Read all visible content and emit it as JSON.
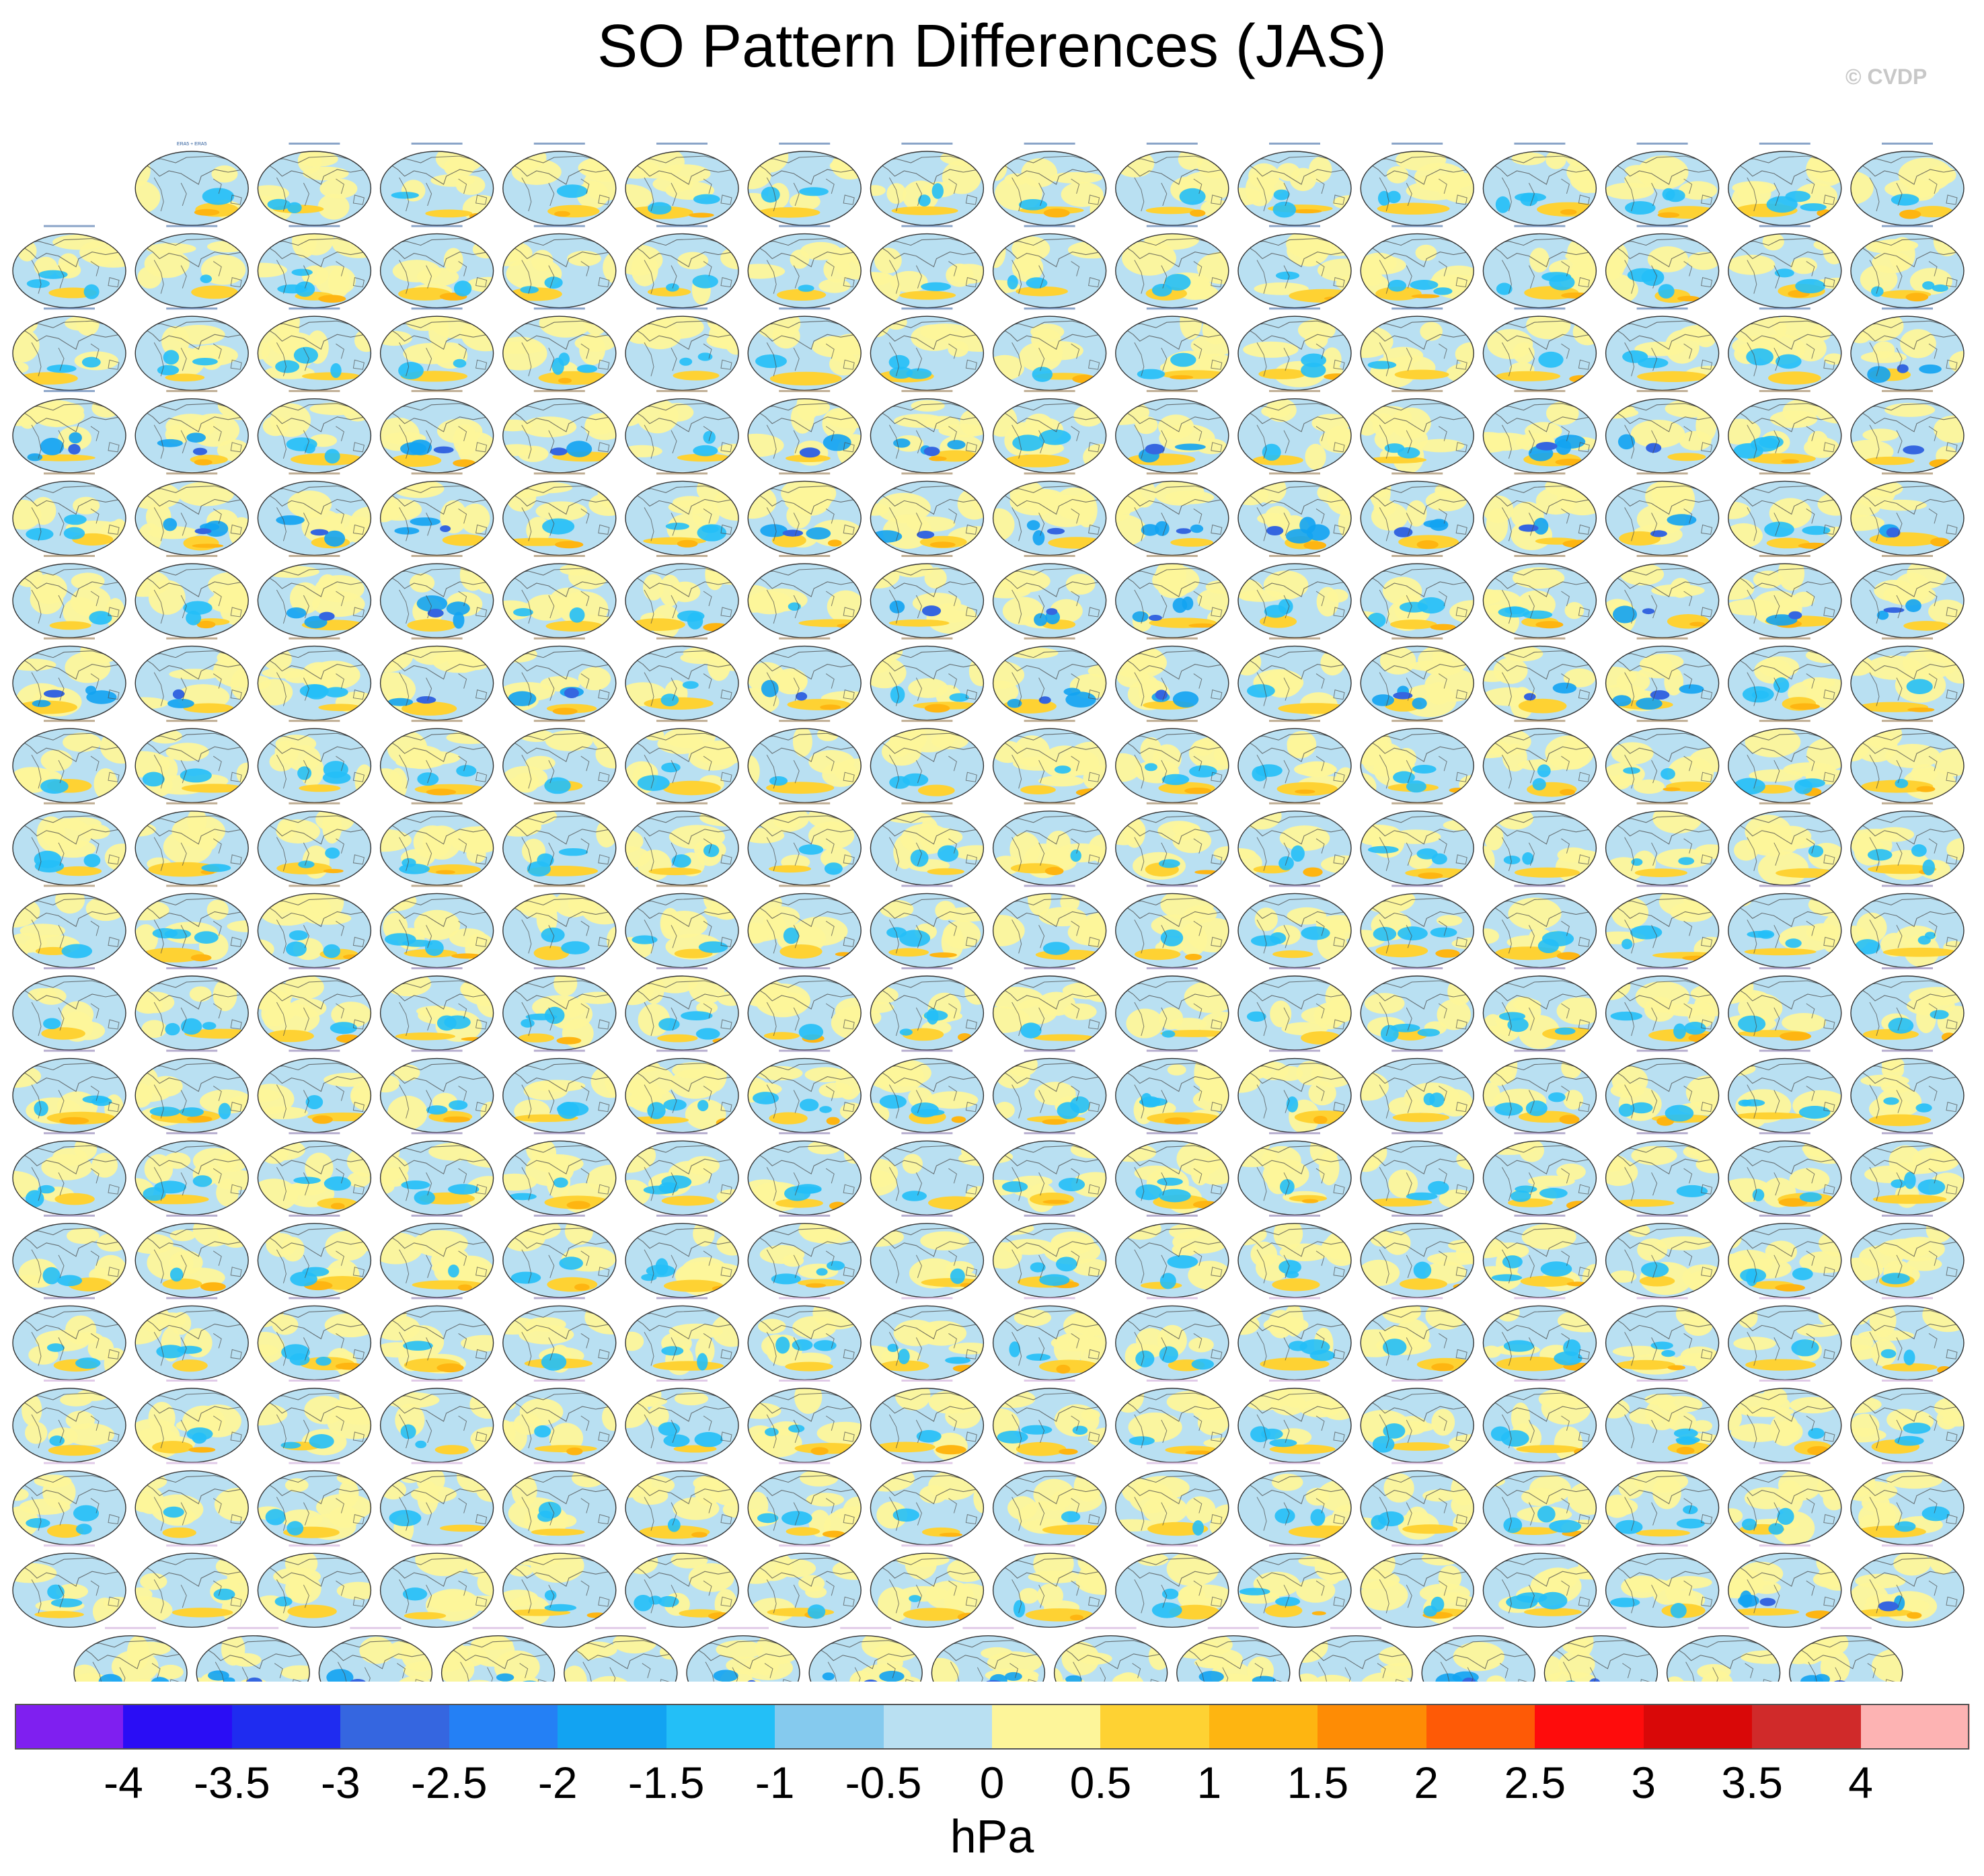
{
  "chart_data": {
    "type": "heatmap",
    "title": "SO Pattern Differences (JAS)",
    "credit": "© CVDP",
    "panel_grid": {
      "rows": 19,
      "panels_per_full_row": 16,
      "first_row_panels": 15,
      "last_row_panels": 15,
      "total_panels": 302,
      "first_panel_title": "ERA5 + ERA5",
      "projection": "global map, filled contours of pattern difference"
    },
    "colorbar": {
      "units": "hPa",
      "levels": [
        -4,
        -3.5,
        -3,
        -2.5,
        -2,
        -1.5,
        -1,
        -0.5,
        0,
        0.5,
        1,
        1.5,
        2,
        2.5,
        3,
        3.5,
        4
      ],
      "level_labels": [
        "-4",
        "-3.5",
        "-3",
        "-2.5",
        "-2",
        "-1.5",
        "-1",
        "-0.5",
        "0",
        "0.5",
        "1",
        "1.5",
        "2",
        "2.5",
        "3",
        "3.5",
        "4"
      ],
      "colors": [
        "#7f1ff0",
        "#2a0df5",
        "#1f2cf0",
        "#3566e0",
        "#2480f5",
        "#12a3f2",
        "#23bff7",
        "#85caee",
        "#b9e0f2",
        "#fdf59a",
        "#fed233",
        "#feb511",
        "#fe8c05",
        "#fe5a06",
        "#fe0c0c",
        "#d90808",
        "#d02a2a",
        "#fdb3b3"
      ]
    }
  }
}
